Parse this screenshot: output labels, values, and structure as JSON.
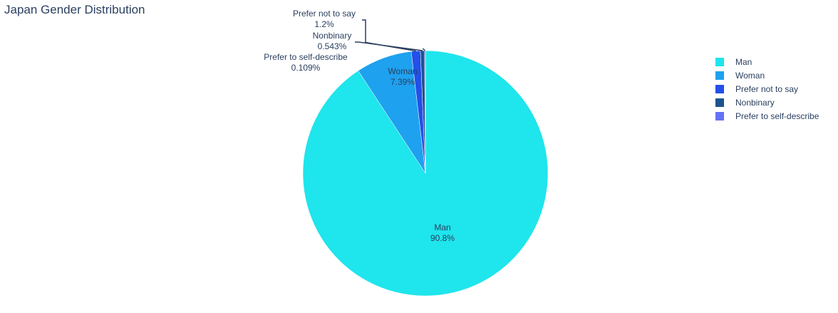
{
  "chart_data": {
    "type": "pie",
    "title": "Japan Gender Distribution",
    "slices": [
      {
        "label": "Man",
        "percent": 90.8,
        "percent_text": "90.8%",
        "color": "#1fe5ec"
      },
      {
        "label": "Woman",
        "percent": 7.39,
        "percent_text": "7.39%",
        "color": "#1ea1ee"
      },
      {
        "label": "Prefer not to say",
        "percent": 1.2,
        "percent_text": "1.2%",
        "color": "#2250e8"
      },
      {
        "label": "Nonbinary",
        "percent": 0.543,
        "percent_text": "0.543%",
        "color": "#1c538e"
      },
      {
        "label": "Prefer to self-describe",
        "percent": 0.109,
        "percent_text": "0.109%",
        "color": "#6472f5"
      }
    ],
    "legend": {
      "position": "right",
      "entries": [
        "Man",
        "Woman",
        "Prefer not to say",
        "Nonbinary",
        "Prefer to self-describe"
      ]
    }
  }
}
